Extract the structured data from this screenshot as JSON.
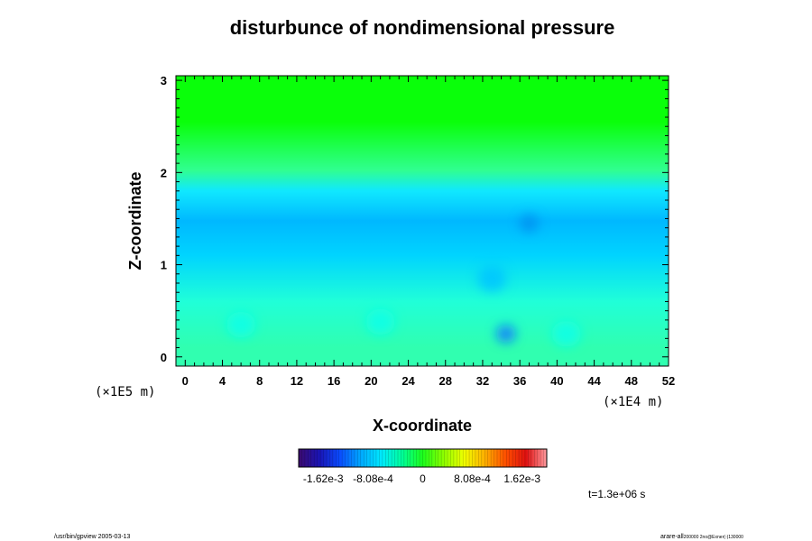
{
  "chart_data": {
    "type": "heatmap",
    "title": "disturbunce of nondimensional pressure",
    "xlabel": "X-coordinate",
    "ylabel": "Z-coordinate",
    "x_scale_note": "(×1E4 m)",
    "y_scale_note": "(×1E5 m)",
    "xlim": [
      -1,
      52
    ],
    "ylim": [
      -0.1,
      3.05
    ],
    "x_ticks": [
      "0",
      "4",
      "8",
      "12",
      "16",
      "20",
      "24",
      "28",
      "32",
      "36",
      "40",
      "44",
      "48",
      "52"
    ],
    "y_ticks": [
      "0",
      "1",
      "2",
      "3"
    ],
    "colorbar": {
      "tick_labels": [
        "-1.62e-3",
        "-8.08e-4",
        "0",
        "8.08e-4",
        "1.62e-3"
      ],
      "range": [
        -0.00202,
        0.00202
      ],
      "colors": [
        "#3b0a6e",
        "#1a14b4",
        "#0a4cff",
        "#00a8ff",
        "#00eaff",
        "#00ff9a",
        "#1cff1c",
        "#8cff00",
        "#f0ff00",
        "#ffb000",
        "#ff5000",
        "#e01010",
        "#ff9ca0"
      ]
    },
    "regions": [
      {
        "z_from": 2.05,
        "z_to": 3.05,
        "value": 2e-05,
        "color": "#0aff0a",
        "desc": "upper layer near zero"
      },
      {
        "z_from": 1.95,
        "z_to": 2.1,
        "value": -0.0002,
        "color": "#30ff90"
      },
      {
        "z_from": 1.65,
        "z_to": 1.95,
        "value": -0.00055,
        "color": "#10e8ff"
      },
      {
        "z_from": 1.3,
        "z_to": 1.65,
        "value": -0.00095,
        "color": "#00b8ff"
      },
      {
        "z_from": 0.9,
        "z_to": 1.3,
        "value": -0.0007,
        "color": "#00d4ff"
      },
      {
        "z_from": 0.3,
        "z_to": 0.9,
        "value": -0.0003,
        "color": "#20ffd8"
      },
      {
        "z_from": -0.1,
        "z_to": 0.3,
        "value": -0.0001,
        "color": "#30ffb0"
      }
    ],
    "features": [
      {
        "x": 34.5,
        "z": 0.25,
        "value": -0.0012,
        "color": "#0a78ff"
      },
      {
        "x": 6.0,
        "z": 0.35,
        "value": -0.0005,
        "color": "#10ffe8"
      },
      {
        "x": 21.0,
        "z": 0.38,
        "value": -0.0005,
        "color": "#10ffe8"
      },
      {
        "x": 41.0,
        "z": 0.25,
        "value": -0.0004,
        "color": "#10ffe8"
      },
      {
        "x": 37.0,
        "z": 1.45,
        "value": -0.0011,
        "color": "#0090f0"
      },
      {
        "x": 33.0,
        "z": 0.85,
        "value": -0.0008,
        "color": "#00c4ff"
      }
    ]
  },
  "footer": {
    "time_label": "t=1.3e+06 s",
    "left_note": "/usr/bin/gpview 2005-03-13",
    "right_note": "arare-all",
    "right_note_small": "200000 2no@Exner(-)130000"
  }
}
